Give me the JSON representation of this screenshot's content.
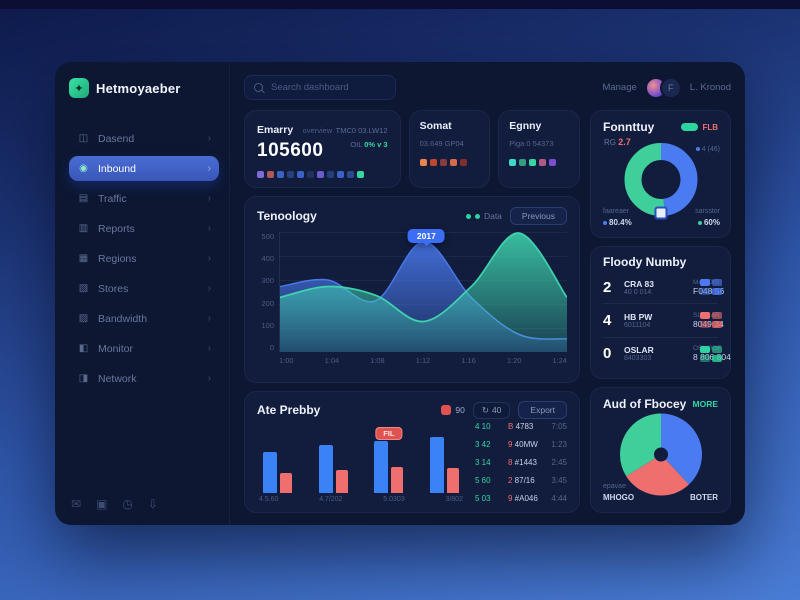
{
  "app": {
    "logo": "Hetmoyaeber",
    "search_placeholder": "Search dashboard",
    "manage_label": "Manage",
    "user_name": "L. Kronod",
    "avatar_initial": "F"
  },
  "sidebar": {
    "items": [
      {
        "label": "Dasend",
        "icon": "dashboard",
        "active": false
      },
      {
        "label": "Inbound",
        "icon": "inbound",
        "active": true
      },
      {
        "label": "Traffic",
        "icon": "traffic",
        "active": false
      },
      {
        "label": "Reports",
        "icon": "reports",
        "active": false
      },
      {
        "label": "Regions",
        "icon": "regions",
        "active": false
      },
      {
        "label": "Stores",
        "icon": "stores",
        "active": false
      },
      {
        "label": "Bandwidth",
        "icon": "bandwidth",
        "active": false
      },
      {
        "label": "Monitor",
        "icon": "monitor",
        "active": false
      },
      {
        "label": "Network",
        "icon": "network",
        "active": false
      }
    ]
  },
  "stats": {
    "card1": {
      "title": "Emarry",
      "note": "overview",
      "value": "105600",
      "meta1": "TMC0  03.LW12",
      "meta2_label": "OIL",
      "meta2_value": "0% v 3",
      "dots": [
        "#7d6cd8",
        "#b05656",
        "#3b62c4",
        "#27407e",
        "#3b62c4",
        "#20335f",
        "#6c5bd0",
        "#24407c",
        "#3b62c4",
        "#2a4a90",
        "#35d6a0"
      ]
    },
    "card2": {
      "title": "Somat",
      "sub": "03.649 GP04",
      "dots": [
        "#e8854f",
        "#c2452f",
        "#8a3b3b",
        "#d86a4a",
        "#7e2f2f"
      ]
    },
    "card3": {
      "title": "Egnny",
      "sub": "Piga 0 54373",
      "dots": [
        "#3fd8c8",
        "#2f9f7f",
        "#35d6a0",
        "#b05a8a",
        "#7a4ecf"
      ]
    }
  },
  "main_chart": {
    "title": "Tenoology",
    "legend_label": "Data",
    "button_label": "Previous",
    "tooltip": "2017"
  },
  "bottom_panel": {
    "title": "Ate Prebby",
    "alert_value": "90",
    "refresh_label": "40",
    "export_label": "Export",
    "rows": [
      {
        "metric": "4 10",
        "id": "B 4783",
        "time": "7:05"
      },
      {
        "metric": "3 42",
        "id": "9 40MW",
        "time": "1:23"
      },
      {
        "metric": "3 14",
        "id": "8 #1443",
        "time": "2:45"
      },
      {
        "metric": "5 60",
        "id": "2 87/16",
        "time": "3:45"
      },
      {
        "metric": "5 03",
        "id": "9 #A046",
        "time": "4:44"
      }
    ]
  },
  "panel_donut": {
    "title": "Fonnttuy",
    "badge": "FLB",
    "stat_label": "RG",
    "stat_value": "2.7",
    "right_label": "4 (46)",
    "bl_label": "faareaer",
    "bl_value": "80.4%",
    "br_label": "sarsstor",
    "br_value": "60%"
  },
  "panel_list": {
    "title": "Floody Numby",
    "rows": [
      {
        "num": "2",
        "label": "CRA 83",
        "sub": "40 0 014",
        "mid_label": "MAOOIS",
        "mid_value": "F048 56",
        "color": "#4a79f2"
      },
      {
        "num": "4",
        "label": "HB PW",
        "sub": "6011104",
        "mid_label": "SLEMAR",
        "mid_value": "8049 34",
        "color": "#ef6e6e"
      },
      {
        "num": "0",
        "label": "OSLAR",
        "sub": "8403303",
        "mid_label": "OSHOOF",
        "mid_value": "8 806 804",
        "color": "#2fd39f"
      }
    ]
  },
  "panel_pie": {
    "title": "Aud of Fbocey",
    "link": "MORE",
    "bl_label": "epavae",
    "bl_value": "MHOGO",
    "br_value": "BOTER"
  },
  "chart_data": [
    {
      "type": "area",
      "title": "Tenoology",
      "x": [
        "1:00",
        "1:04",
        "1:08",
        "1:12",
        "1:16",
        "1:20",
        "1:24"
      ],
      "ylim": [
        0,
        550
      ],
      "yticks": [
        500,
        400,
        300,
        200,
        100,
        0
      ],
      "grid": true,
      "legend_position": "top-right",
      "series": [
        {
          "name": "primary-blue",
          "color": "#4a7bf0",
          "values": [
            300,
            330,
            235,
            505,
            250,
            80,
            60
          ]
        },
        {
          "name": "secondary-teal",
          "color": "#3fd8b0",
          "values": [
            250,
            300,
            260,
            140,
            300,
            545,
            250
          ]
        }
      ],
      "annotation": {
        "x": "1:12",
        "label": "2017"
      }
    },
    {
      "type": "bar",
      "categories": [
        "4.5.60",
        "4.7/202",
        "5.0303",
        "3/802"
      ],
      "ylim": [
        0,
        600
      ],
      "series": [
        {
          "name": "primary-blue",
          "color": "#3b82f6",
          "values": [
            410,
            480,
            520,
            560
          ]
        },
        {
          "name": "secondary-red",
          "color": "#ef6e6e",
          "values": [
            200,
            230,
            260,
            250
          ]
        }
      ],
      "badge": {
        "category_index": 2,
        "label": "FIL"
      }
    },
    {
      "type": "donut",
      "title": "Fonnttuy",
      "labels": [
        "right-segment",
        "left-segment"
      ],
      "values": [
        48,
        52
      ],
      "colors": [
        "#4a7bf0",
        "#3ecf9a"
      ]
    },
    {
      "type": "pie",
      "title": "Aud of Fbocey",
      "labels": [
        "BOTER",
        "bottom-segment",
        "MHOGO"
      ],
      "values": [
        38,
        28,
        34
      ],
      "colors": [
        "#4a7bf0",
        "#ef6e6e",
        "#3ecf9a"
      ]
    }
  ],
  "colors": {
    "accent_blue": "#3b82f6",
    "accent_teal": "#2fd39f",
    "accent_red": "#ef6e6e",
    "card_bg": "#121d3d",
    "window_bg": "#0d1731"
  }
}
